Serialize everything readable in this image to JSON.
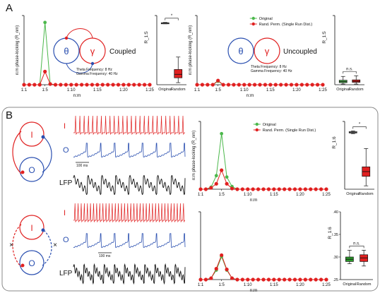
{
  "panel_labels": {
    "a": "A",
    "b": "B"
  },
  "colors": {
    "original": "#4cb84c",
    "permuted": "#e02020",
    "theta": "#2a4fb0",
    "gamma": "#e02020",
    "interneuron": "#e02020",
    "pyramidal": "#2a4fb0",
    "lfp": "#111111",
    "box_random": "#e02020",
    "box_original_b": "#2a9a2a"
  },
  "panel_a": {
    "coupled": {
      "diagram_labels": {
        "theta": "θ",
        "gamma": "γ",
        "state": "Coupled"
      },
      "params": [
        "Theta Frequency: 8 Hz",
        "Gamma Frequency: 40 Hz"
      ]
    },
    "uncoupled": {
      "diagram_labels": {
        "theta": "θ",
        "gamma": "γ",
        "state": "Uncoupled"
      },
      "params": [
        "Theta Frequency: 8 Hz",
        "Gamma Frequency: 40 Hz"
      ]
    }
  },
  "panel_b": {
    "traces_top": {
      "i_label": "I",
      "o_label": "O",
      "lfp_label": "LFP",
      "scale": "100 ms"
    },
    "traces_bottom": {
      "i_label": "I",
      "o_label": "O",
      "lfp_label": "LFP",
      "scale": "100 ms"
    },
    "circuit_top": {
      "i_label": "I",
      "o_label": "O"
    },
    "circuit_bottom": {
      "i_label": "I",
      "o_label": "O",
      "cut_marks": [
        "×",
        "×"
      ]
    }
  },
  "chart_data": [
    {
      "id": "a-coupled-lines",
      "type": "line",
      "ylabel": "n:m phase-locking (R_nm)",
      "xlabel": "n:m",
      "xticks": [
        "1:1",
        "1:5",
        "1:10",
        "1:15",
        "1:20",
        "1:25"
      ],
      "legend": [],
      "series": [
        {
          "name": "Original",
          "color": "#4cb84c",
          "y": [
            0,
            0,
            0,
            0,
            0.9,
            0.01,
            0,
            0,
            0,
            0,
            0,
            0,
            0,
            0,
            0,
            0,
            0,
            0,
            0,
            0,
            0,
            0,
            0,
            0,
            0
          ]
        },
        {
          "name": "Rand. Perm. (Single Run Dist.)",
          "color": "#e02020",
          "y": [
            0,
            0,
            0,
            0,
            0.19,
            0.01,
            0,
            0,
            0,
            0,
            0,
            0,
            0,
            0,
            0,
            0,
            0,
            0,
            0,
            0,
            0,
            0,
            0,
            0,
            0
          ]
        }
      ],
      "ylim": [
        0,
        1
      ]
    },
    {
      "id": "a-coupled-box",
      "type": "box",
      "ylabel": "R_1:5",
      "categories": [
        "Original",
        "Random"
      ],
      "boxes": [
        {
          "q1": 0.885,
          "median": 0.89,
          "q3": 0.895,
          "min": 0.88,
          "max": 0.9,
          "color": "#ffffff"
        },
        {
          "q1": 0.1,
          "median": 0.15,
          "q3": 0.22,
          "min": 0.03,
          "max": 0.4,
          "color": "#e02020"
        }
      ],
      "significance": "*",
      "ylim": [
        0,
        1
      ]
    },
    {
      "id": "a-uncoupled-lines",
      "type": "line",
      "ylabel": "n:m phase-locking (R_nm)",
      "xlabel": "n:m",
      "xticks": [
        "1:1",
        "1:5",
        "1:10",
        "1:15",
        "1:20",
        "1:25"
      ],
      "legend": [
        "Original",
        "Rand. Perm. (Single Run Dist.)"
      ],
      "series": [
        {
          "name": "Original",
          "color": "#4cb84c",
          "y": [
            0,
            0,
            0,
            0,
            0.05,
            0,
            0,
            0,
            0,
            0,
            0,
            0,
            0,
            0,
            0,
            0,
            0,
            0,
            0,
            0,
            0,
            0,
            0,
            0,
            0
          ]
        },
        {
          "name": "Rand. Perm. (Single Run Dist.)",
          "color": "#e02020",
          "y": [
            0,
            0,
            0,
            0,
            0.06,
            0,
            0,
            0,
            0,
            0,
            0,
            0,
            0,
            0,
            0,
            0,
            0,
            0,
            0,
            0,
            0,
            0,
            0,
            0,
            0
          ]
        }
      ],
      "ylim": [
        0,
        1
      ]
    },
    {
      "id": "a-uncoupled-box",
      "type": "box",
      "ylabel": "R_1:5",
      "categories": [
        "Original",
        "Random"
      ],
      "boxes": [
        {
          "q1": 0.03,
          "median": 0.045,
          "q3": 0.065,
          "min": 0.01,
          "max": 0.12,
          "color": "#4cb84c"
        },
        {
          "q1": 0.035,
          "median": 0.05,
          "q3": 0.07,
          "min": 0.01,
          "max": 0.13,
          "color": "#e02020"
        }
      ],
      "significance": "n.s.",
      "ylim": [
        0,
        1
      ]
    },
    {
      "id": "b-top-lines",
      "type": "line",
      "ylabel": "n:m phase-locking (R_nm)",
      "xlabel": "n:m",
      "xticks": [
        "1:1",
        "1:5",
        "1:10",
        "1:15",
        "1:20",
        "1:25"
      ],
      "legend": [
        "Original",
        "Rand. Perm. (Single Run Dist.)"
      ],
      "series": [
        {
          "name": "Original",
          "color": "#4cb84c",
          "y": [
            0,
            0,
            0.03,
            0.2,
            0.82,
            0.18,
            0.04,
            0,
            0,
            0,
            0,
            0,
            0,
            0,
            0,
            0,
            0,
            0,
            0,
            0,
            0,
            0,
            0,
            0,
            0
          ]
        },
        {
          "name": "Rand. Perm. (Single Run Dist.)",
          "color": "#e02020",
          "y": [
            0,
            0,
            0.02,
            0.08,
            0.28,
            0.08,
            0.01,
            0,
            0,
            0,
            0,
            0,
            0,
            0,
            0,
            0,
            0,
            0,
            0,
            0,
            0,
            0,
            0,
            0,
            0
          ]
        }
      ],
      "ylim": [
        0,
        1
      ]
    },
    {
      "id": "b-top-box",
      "type": "box",
      "ylabel": "R_1:6",
      "categories": [
        "Original",
        "Random"
      ],
      "boxes": [
        {
          "q1": 0.83,
          "median": 0.84,
          "q3": 0.85,
          "min": 0.82,
          "max": 0.86,
          "color": "#ffffff"
        },
        {
          "q1": 0.19,
          "median": 0.26,
          "q3": 0.33,
          "min": 0.05,
          "max": 0.6,
          "color": "#e02020"
        }
      ],
      "significance": "*",
      "ylim": [
        0,
        1
      ]
    },
    {
      "id": "b-bottom-lines",
      "type": "line",
      "ylabel": "",
      "xlabel": "n:m",
      "xticks": [
        "1:1",
        "1:5",
        "1:10",
        "1:15",
        "1:20",
        "1:25"
      ],
      "legend": [],
      "series": [
        {
          "name": "Original",
          "color": "#4cb84c",
          "y": [
            0,
            0,
            0.02,
            0.14,
            0.34,
            0.14,
            0.02,
            0,
            0,
            0,
            0,
            0,
            0,
            0,
            0,
            0,
            0,
            0,
            0,
            0,
            0,
            0,
            0,
            0,
            0
          ]
        },
        {
          "name": "Rand. Perm. (Single Run Dist.)",
          "color": "#e02020",
          "y": [
            0,
            0,
            0.02,
            0.16,
            0.36,
            0.15,
            0.02,
            0,
            0,
            0,
            0,
            0,
            0,
            0,
            0,
            0,
            0,
            0,
            0,
            0,
            0,
            0,
            0,
            0,
            0
          ]
        }
      ],
      "ylim": [
        0,
        1
      ]
    },
    {
      "id": "b-bottom-box",
      "type": "box",
      "ylabel": "R_1:6",
      "categories": [
        "Original",
        "Random"
      ],
      "yticks": [
        ".25",
        ".30",
        ".35",
        ".40"
      ],
      "boxes": [
        {
          "q1": 0.29,
          "median": 0.295,
          "q3": 0.3,
          "min": 0.285,
          "max": 0.315,
          "color": "#2a9a2a"
        },
        {
          "q1": 0.29,
          "median": 0.298,
          "q3": 0.305,
          "min": 0.28,
          "max": 0.315,
          "color": "#e02020"
        }
      ],
      "significance": "n.s.",
      "ylim": [
        0.25,
        0.4
      ]
    }
  ]
}
